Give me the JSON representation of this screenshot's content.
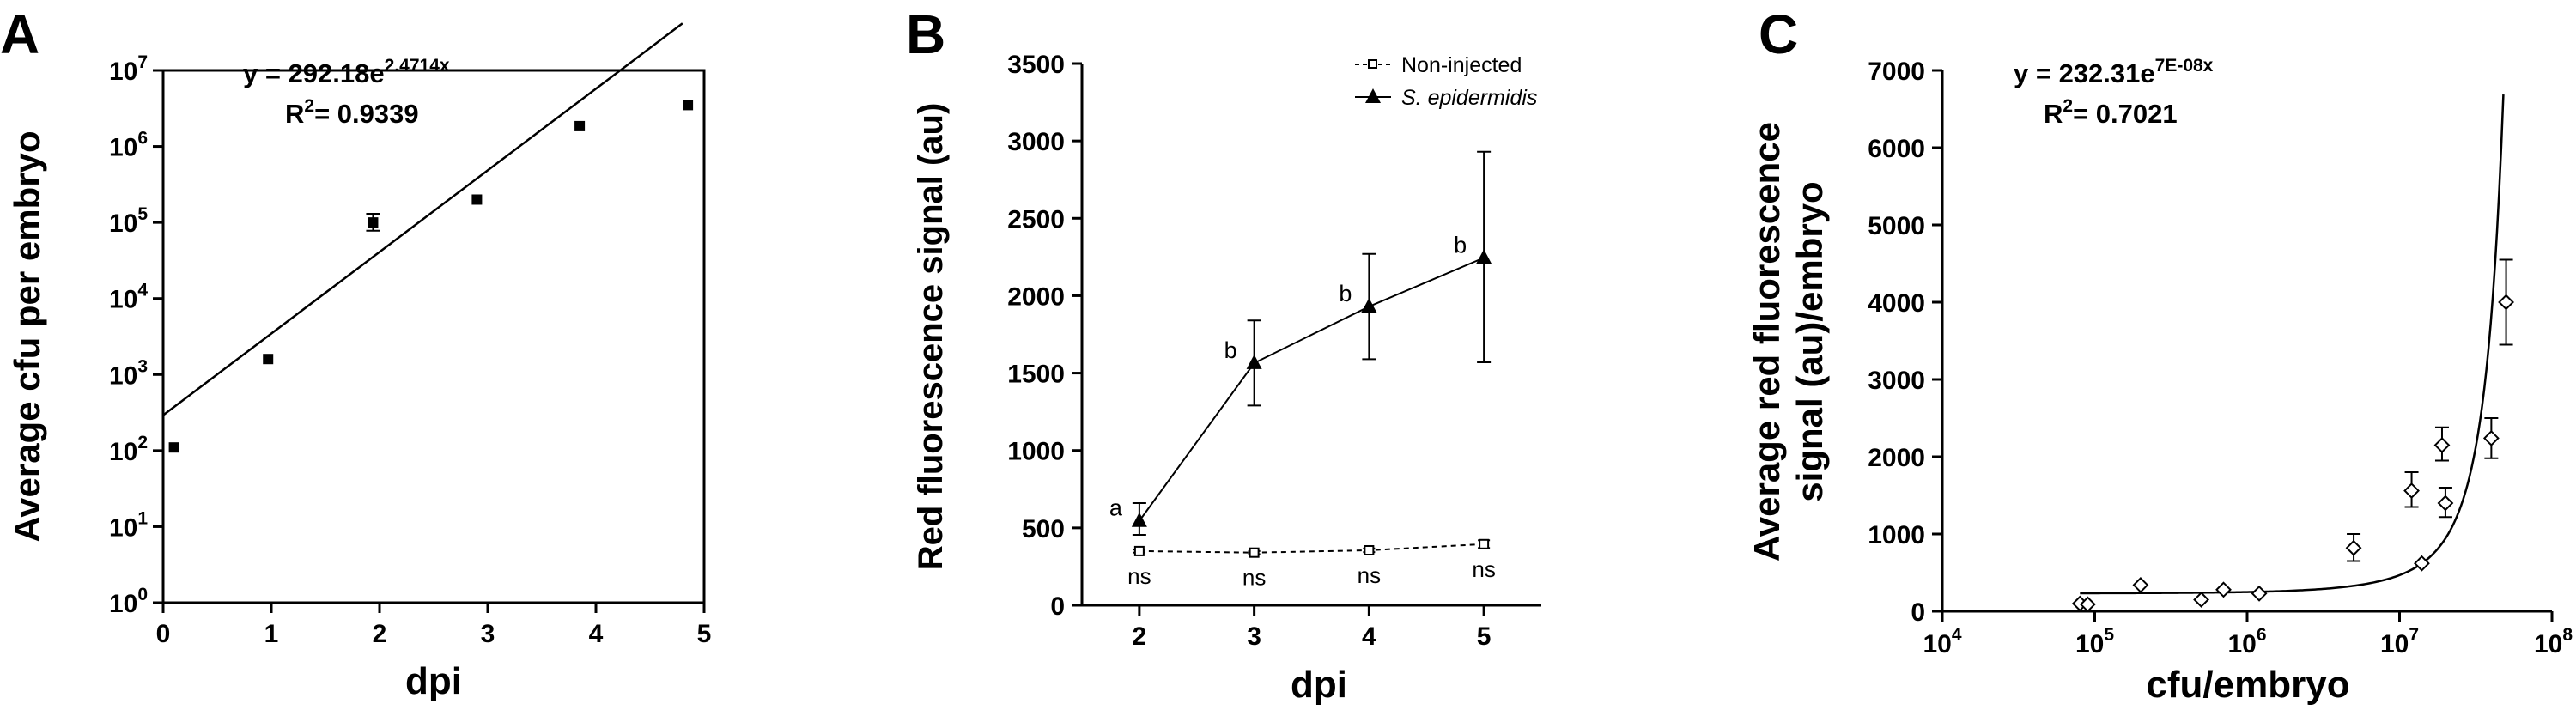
{
  "chart_data": [
    {
      "panel_label": "A",
      "type": "scatter",
      "xlabel": "dpi",
      "ylabel": "Average cfu per embryo",
      "xlim": [
        0,
        5
      ],
      "ylim_log10": [
        0,
        7
      ],
      "yscale": "log",
      "x_ticks": [
        "0",
        "1",
        "2",
        "3",
        "4",
        "5"
      ],
      "y_tick_base": "10",
      "y_tick_exponents": [
        "0",
        "1",
        "2",
        "3",
        "4",
        "5",
        "6",
        "7"
      ],
      "points": [
        {
          "x": 0.1,
          "y": 110
        },
        {
          "x": 0.97,
          "y": 1600
        },
        {
          "x": 1.94,
          "y": 100000,
          "err_low": 78000,
          "err_high": 130000
        },
        {
          "x": 2.9,
          "y": 200000
        },
        {
          "x": 3.85,
          "y": 1850000
        },
        {
          "x": 4.85,
          "y": 3500000
        }
      ],
      "fit": {
        "type": "exponential",
        "a": 292.18,
        "b": 2.4714,
        "x_range": [
          0,
          4.8
        ]
      },
      "equation_main": "y = 292.18e",
      "equation_exponent": "2.4714x",
      "r2_label": "R",
      "r2_sup": "2",
      "r2_value": "= 0.9339"
    },
    {
      "panel_label": "B",
      "type": "line",
      "xlabel": "dpi",
      "ylabel": "Red fluorescence signal (au)",
      "x": [
        2,
        3,
        4,
        5
      ],
      "xlim": [
        1.5,
        5.5
      ],
      "ylim": [
        0,
        3500
      ],
      "x_ticks": [
        "2",
        "3",
        "4",
        "5"
      ],
      "y_ticks": [
        "0",
        "500",
        "1000",
        "1500",
        "2000",
        "2500",
        "3000",
        "3500"
      ],
      "series": [
        {
          "name": "Non-injected",
          "values": [
            350,
            340,
            355,
            395
          ],
          "errors": [
            10,
            10,
            12,
            25
          ],
          "labels": [
            "ns",
            "ns",
            "ns",
            "ns"
          ],
          "style": "dashed",
          "marker": "open-square"
        },
        {
          "name": "S. epidermidis",
          "values": [
            545,
            1565,
            1930,
            2245
          ],
          "err_low": [
            455,
            1290,
            1590,
            1570
          ],
          "err_high": [
            660,
            1840,
            2270,
            2930
          ],
          "labels": [
            "a",
            "b",
            "b",
            "b"
          ],
          "style": "solid",
          "marker": "filled-triangle"
        }
      ],
      "legend_position": "top-right"
    },
    {
      "panel_label": "C",
      "type": "scatter",
      "xlabel": "cfu/embryo",
      "ylabel_line1": "Average red fluorescence",
      "ylabel_line2": "signal (au)/embryo",
      "xscale": "log",
      "xlim_log10": [
        4,
        8
      ],
      "ylim": [
        0,
        7000
      ],
      "x_tick_base": "10",
      "x_tick_exponents": [
        "4",
        "5",
        "6",
        "7",
        "8"
      ],
      "y_ticks": [
        "0",
        "1000",
        "2000",
        "3000",
        "4000",
        "5000",
        "6000",
        "7000"
      ],
      "points": [
        {
          "x": 80000,
          "y": 100
        },
        {
          "x": 90000,
          "y": 90
        },
        {
          "x": 200000,
          "y": 340
        },
        {
          "x": 500000,
          "y": 150
        },
        {
          "x": 700000,
          "y": 280
        },
        {
          "x": 1200000,
          "y": 230
        },
        {
          "x": 5000000,
          "y": 820,
          "err_low": 650,
          "err_high": 1000
        },
        {
          "x": 12000000,
          "y": 1560,
          "err_low": 1350,
          "err_high": 1800
        },
        {
          "x": 14000000,
          "y": 620
        },
        {
          "x": 19000000,
          "y": 2150,
          "err_low": 1950,
          "err_high": 2380
        },
        {
          "x": 20000000,
          "y": 1400,
          "err_low": 1220,
          "err_high": 1600
        },
        {
          "x": 40000000,
          "y": 2240,
          "err_low": 1980,
          "err_high": 2500
        },
        {
          "x": 50000000,
          "y": 4000,
          "err_low": 3450,
          "err_high": 4550
        }
      ],
      "fit": {
        "type": "exponential",
        "a": 232.31,
        "b": 7e-08,
        "x_range": [
          80000,
          48000000
        ]
      },
      "equation_main": "y = 232.31e",
      "equation_exponent": "7E-08x",
      "r2_label": "R",
      "r2_sup": "2",
      "r2_value": "= 0.7021"
    }
  ]
}
